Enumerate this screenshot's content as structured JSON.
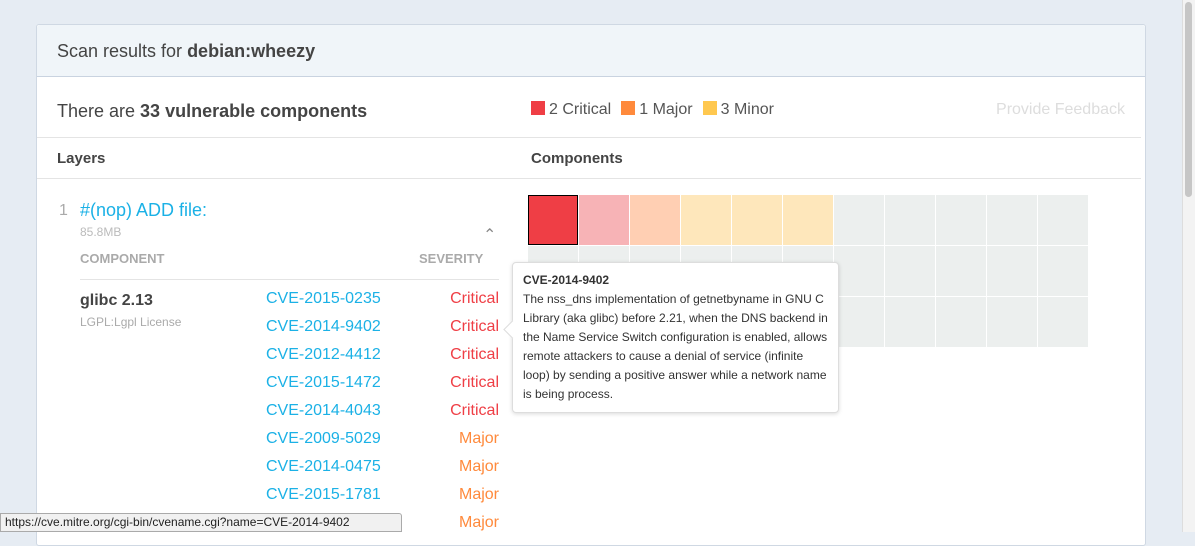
{
  "header": {
    "title_prefix": "Scan results for ",
    "image": "debian:wheezy"
  },
  "summary": {
    "prefix": "There are ",
    "count_text": "33 vulnerable components"
  },
  "legend": [
    {
      "label": "2 Critical",
      "color": "#ef3e45"
    },
    {
      "label": "1 Major",
      "color": "#ff8a3c"
    },
    {
      "label": "3 Minor",
      "color": "#ffc84f"
    }
  ],
  "feedback_label": "Provide Feedback",
  "sections": {
    "layers": "Layers",
    "components": "Components"
  },
  "layer": {
    "number": "1",
    "title": "#(nop) ADD file:",
    "size": "85.8MB",
    "col_component": "COMPONENT",
    "col_severity": "SEVERITY"
  },
  "component": {
    "name": "glibc 2.13",
    "license": "LGPL:Lgpl License"
  },
  "vulnerabilities": [
    {
      "cve": "CVE-2015-0235",
      "severity": "Critical"
    },
    {
      "cve": "CVE-2014-9402",
      "severity": "Critical"
    },
    {
      "cve": "CVE-2012-4412",
      "severity": "Critical"
    },
    {
      "cve": "CVE-2015-1472",
      "severity": "Critical"
    },
    {
      "cve": "CVE-2014-4043",
      "severity": "Critical"
    },
    {
      "cve": "CVE-2009-5029",
      "severity": "Major"
    },
    {
      "cve": "CVE-2014-0475",
      "severity": "Major"
    },
    {
      "cve": "CVE-2015-1781",
      "severity": "Major"
    },
    {
      "cve": "",
      "severity": "Major"
    }
  ],
  "severity_colors": {
    "Critical": "#ef3e45",
    "Major": "#ff8a3c"
  },
  "component_grid": {
    "total": 33,
    "cells": [
      "critical-selected",
      "critical",
      "major",
      "minor",
      "minor",
      "minor"
    ],
    "colors": {
      "critical-selected": "#ef3e45",
      "critical": "#f7b3b6",
      "major": "#ffcfb3",
      "minor": "#fee7bb",
      "none": "#ecefee"
    }
  },
  "tooltip": {
    "title": "CVE-2014-9402",
    "body": "The nss_dns implementation of getnetbyname in GNU C Library (aka glibc) before 2.21, when the DNS backend in the Name Service Switch configuration is enabled, allows remote attackers to cause a denial of service (infinite loop) by sending a positive answer while a network name is being process."
  },
  "status_url": "https://cve.mitre.org/cgi-bin/cvename.cgi?name=CVE-2014-9402"
}
